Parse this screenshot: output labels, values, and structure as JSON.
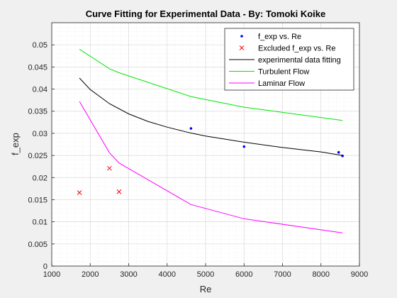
{
  "chart_data": {
    "type": "line",
    "title": "Curve Fitting for Experimental Data - By: Tomoki Koike",
    "xlabel": "Re",
    "ylabel": "f_exp",
    "xlim": [
      1000,
      9000
    ],
    "ylim": [
      0,
      0.055
    ],
    "xticks": [
      1000,
      2000,
      3000,
      4000,
      5000,
      6000,
      7000,
      8000,
      9000
    ],
    "yticks": [
      0,
      0.005,
      0.01,
      0.015,
      0.02,
      0.025,
      0.03,
      0.035,
      0.04,
      0.045,
      0.05
    ],
    "grid": "major and minor",
    "legend_position": "top-right",
    "series": [
      {
        "name": "f_exp vs. Re",
        "kind": "scatter",
        "marker": "dot",
        "color": "#0000ff",
        "points": [
          [
            4620,
            0.0311
          ],
          [
            6000,
            0.027
          ],
          [
            8460,
            0.0257
          ],
          [
            8560,
            0.0249
          ]
        ]
      },
      {
        "name": "Excluded f_exp vs. Re",
        "kind": "scatter",
        "marker": "x",
        "color": "#ff0000",
        "points": [
          [
            1720,
            0.0166
          ],
          [
            2500,
            0.0221
          ],
          [
            2750,
            0.0168
          ]
        ]
      },
      {
        "name": "experimental data fitting",
        "kind": "line",
        "color": "#000000",
        "points": [
          [
            1720,
            0.0425
          ],
          [
            2000,
            0.0399
          ],
          [
            2500,
            0.0367
          ],
          [
            3000,
            0.0344
          ],
          [
            3500,
            0.0327
          ],
          [
            4000,
            0.0314
          ],
          [
            4600,
            0.0301
          ],
          [
            5000,
            0.0294
          ],
          [
            6000,
            0.028
          ],
          [
            7000,
            0.0268
          ],
          [
            8000,
            0.0258
          ],
          [
            8560,
            0.025
          ]
        ]
      },
      {
        "name": "Turbulent Flow",
        "kind": "line",
        "color": "#00e600",
        "points": [
          [
            1720,
            0.049
          ],
          [
            2500,
            0.0446
          ],
          [
            2750,
            0.0437
          ],
          [
            4620,
            0.0383
          ],
          [
            6000,
            0.0359
          ],
          [
            8560,
            0.0329
          ]
        ]
      },
      {
        "name": "Laminar Flow",
        "kind": "line",
        "color": "#ff00ff",
        "points": [
          [
            1720,
            0.0372
          ],
          [
            2500,
            0.0256
          ],
          [
            2750,
            0.0233
          ],
          [
            4620,
            0.0139
          ],
          [
            6000,
            0.0107
          ],
          [
            8560,
            0.0075
          ]
        ]
      }
    ]
  }
}
